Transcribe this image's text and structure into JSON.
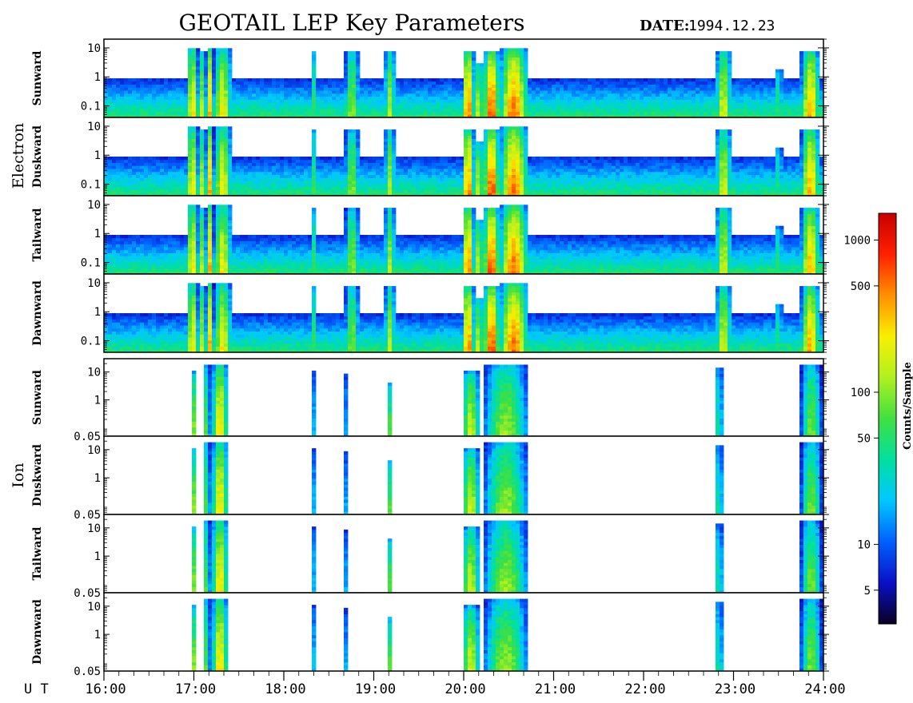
{
  "chart_data": {
    "type": "heatmap",
    "title": "GEOTAIL LEP Key Parameters",
    "date_label": "DATE:",
    "date_value": "1994.12.23",
    "x_axis": {
      "unit_label": "U T",
      "range_hours": [
        16,
        24
      ],
      "tick_labels": [
        "16:00",
        "17:00",
        "18:00",
        "19:00",
        "20:00",
        "21:00",
        "22:00",
        "23:00",
        "24:00"
      ]
    },
    "colorbar": {
      "label": "Counts/Sample",
      "scale": "log",
      "range": [
        3,
        1500
      ],
      "ticks": [
        {
          "value": 5,
          "label": "5"
        },
        {
          "value": 10,
          "label": "10"
        },
        {
          "value": 50,
          "label": "50"
        },
        {
          "value": 100,
          "label": "100"
        },
        {
          "value": 500,
          "label": "500"
        },
        {
          "value": 1000,
          "label": "1000"
        }
      ],
      "colors": [
        "#0a0020",
        "#0a10c8",
        "#0060ff",
        "#00c8ff",
        "#00e0a0",
        "#40e040",
        "#b0f020",
        "#f8f000",
        "#ff9000",
        "#ff2000",
        "#c80000"
      ]
    },
    "groups": [
      {
        "species": "Electron",
        "y_scale": "log",
        "y_range": [
          0.04,
          20
        ],
        "y_ticks": [
          {
            "value": 10,
            "label": "10"
          },
          {
            "value": 1,
            "label": "1"
          },
          {
            "value": 0.1,
            "label": "0.1"
          }
        ],
        "panels": [
          "Sunward",
          "Duskward",
          "Tailward",
          "Dawnward"
        ],
        "background": {
          "upper_energy": 0.8,
          "level": 40
        },
        "events": [
          {
            "start": 16.92,
            "end": 17.05,
            "peak": 300,
            "upper": 10
          },
          {
            "start": 17.05,
            "end": 17.14,
            "peak": 150,
            "upper": 8
          },
          {
            "start": 17.14,
            "end": 17.22,
            "peak": 400,
            "upper": 10
          },
          {
            "start": 17.22,
            "end": 17.42,
            "peak": 250,
            "upper": 10
          },
          {
            "start": 18.3,
            "end": 18.37,
            "peak": 60,
            "upper": 8
          },
          {
            "start": 18.68,
            "end": 18.84,
            "peak": 120,
            "upper": 8
          },
          {
            "start": 19.12,
            "end": 19.24,
            "peak": 150,
            "upper": 8
          },
          {
            "start": 19.98,
            "end": 20.12,
            "peak": 600,
            "upper": 8
          },
          {
            "start": 20.12,
            "end": 20.22,
            "peak": 200,
            "upper": 3
          },
          {
            "start": 20.22,
            "end": 20.4,
            "peak": 800,
            "upper": 8
          },
          {
            "start": 20.4,
            "end": 20.72,
            "peak": 600,
            "upper": 10
          },
          {
            "start": 22.8,
            "end": 22.98,
            "peak": 200,
            "upper": 8
          },
          {
            "start": 23.45,
            "end": 23.55,
            "peak": 60,
            "upper": 2
          },
          {
            "start": 23.75,
            "end": 23.96,
            "peak": 400,
            "upper": 8
          }
        ]
      },
      {
        "species": "Ion",
        "y_scale": "log",
        "y_range": [
          0.05,
          30
        ],
        "y_ticks": [
          {
            "value": 10,
            "label": "10"
          },
          {
            "value": 1,
            "label": "1"
          },
          {
            "value": 0.05,
            "label": "0.05"
          }
        ],
        "panels": [
          "Sunward",
          "Duskward",
          "Tailward",
          "Dawnward"
        ],
        "background": {
          "upper_energy": 0,
          "level": 0
        },
        "events": [
          {
            "start": 16.98,
            "end": 17.04,
            "peak": 150,
            "upper": 10
          },
          {
            "start": 17.12,
            "end": 17.18,
            "peak": 200,
            "upper": 20
          },
          {
            "start": 17.2,
            "end": 17.38,
            "peak": 300,
            "upper": 20
          },
          {
            "start": 18.32,
            "end": 18.35,
            "peak": 20,
            "upper": 12
          },
          {
            "start": 18.68,
            "end": 18.72,
            "peak": 30,
            "upper": 8
          },
          {
            "start": 19.15,
            "end": 19.2,
            "peak": 80,
            "upper": 4
          },
          {
            "start": 19.98,
            "end": 20.18,
            "peak": 180,
            "upper": 10
          },
          {
            "start": 20.22,
            "end": 20.72,
            "peak": 120,
            "upper": 20
          },
          {
            "start": 22.8,
            "end": 22.88,
            "peak": 60,
            "upper": 15
          },
          {
            "start": 23.75,
            "end": 23.98,
            "peak": 100,
            "upper": 20
          }
        ]
      }
    ]
  }
}
